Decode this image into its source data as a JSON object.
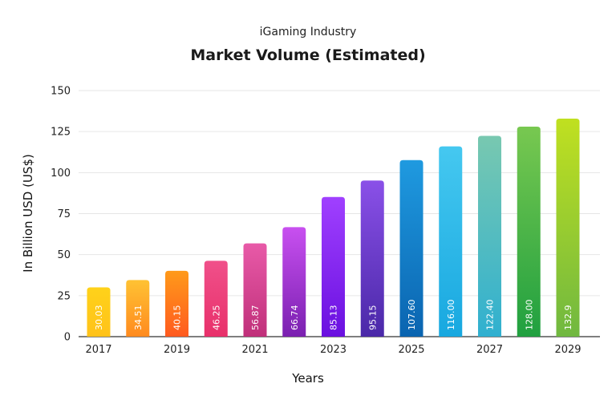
{
  "chart_data": {
    "type": "bar",
    "subtitle": "iGaming Industry",
    "title": "Market Volume (Estimated)",
    "xlabel": "Years",
    "ylabel": "In Billion USD (US$)",
    "ylim": [
      0,
      150
    ],
    "yticks": [
      0,
      25,
      50,
      75,
      100,
      125,
      150
    ],
    "grid": true,
    "categories": [
      "2017",
      "2018",
      "2019",
      "2020",
      "2021",
      "2022",
      "2023",
      "2024",
      "2025",
      "2026",
      "2027",
      "2028",
      "2029"
    ],
    "x_tick_labels": [
      "2017",
      "",
      "2019",
      "",
      "2021",
      "",
      "2023",
      "",
      "2025",
      "",
      "2027",
      "",
      "2029"
    ],
    "values": [
      30.03,
      34.51,
      40.15,
      46.25,
      56.87,
      66.74,
      85.13,
      95.15,
      107.6,
      116.0,
      122.4,
      128.0,
      132.9
    ],
    "data_labels": [
      "30.03",
      "34.51",
      "40.15",
      "46.25",
      "56.87",
      "66.74",
      "85.13",
      "95.15",
      "107.60",
      "116.00",
      "122.40",
      "128.00",
      "132.9"
    ],
    "bar_gradients": [
      [
        "#ffd21a",
        "#ffc21a"
      ],
      [
        "#ffc233",
        "#ff8a1f"
      ],
      [
        "#ff9a1a",
        "#ff5a1f"
      ],
      [
        "#f0508a",
        "#e8306a"
      ],
      [
        "#e85aa8",
        "#c0307a"
      ],
      [
        "#c850f0",
        "#7a20b0"
      ],
      [
        "#a040ff",
        "#6a10e0"
      ],
      [
        "#8a50e8",
        "#4a28a8"
      ],
      [
        "#1f9ae0",
        "#0a64b0"
      ],
      [
        "#45c8f0",
        "#18a8e0"
      ],
      [
        "#78c8b0",
        "#30b0d0"
      ],
      [
        "#78c850",
        "#20a040"
      ],
      [
        "#c0e020",
        "#70b840"
      ]
    ]
  }
}
